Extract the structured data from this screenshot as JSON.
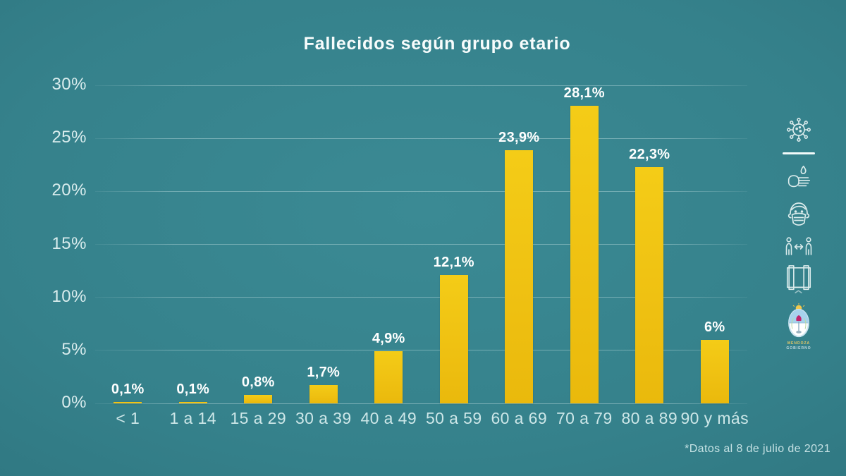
{
  "title": "Fallecidos según grupo etario",
  "footnote": "*Datos al 8 de julio de 2021",
  "colors": {
    "background_center": "#3B8A94",
    "background_edge": "#2B6E78",
    "bar": "#EFC112",
    "title_text": "#F7FCFC",
    "axis_text": "#D9ECED",
    "value_text": "#FFFFFF",
    "grid": "rgba(235,250,250,0.34)"
  },
  "chart_data": {
    "type": "bar",
    "title": "Fallecidos según grupo etario",
    "categories": [
      "< 1",
      "1 a 14",
      "15 a 29",
      "30 a 39",
      "40 a 49",
      "50 a 59",
      "60 a 69",
      "70 a 79",
      "80 a 89",
      "90 y más"
    ],
    "values": [
      0.1,
      0.1,
      0.8,
      1.7,
      4.9,
      12.1,
      23.9,
      28.1,
      22.3,
      6
    ],
    "value_labels": [
      "0,1%",
      "0,1%",
      "0,8%",
      "1,7%",
      "4,9%",
      "12,1%",
      "23,9%",
      "28,1%",
      "22,3%",
      "6%"
    ],
    "xlabel": "",
    "ylabel": "",
    "ylim": [
      0,
      30
    ],
    "yticks": [
      30,
      25,
      20,
      15,
      10,
      5,
      0
    ],
    "ytick_labels": [
      "30%",
      "25%",
      "20%",
      "15%",
      "10%",
      "5%",
      "0%"
    ],
    "grid": "horizontal",
    "legend": "none",
    "bar_color": "#EFC112"
  },
  "sidebar": {
    "icons": [
      {
        "name": "virus-icon"
      },
      {
        "name": "hand-washing-icon"
      },
      {
        "name": "face-mask-icon"
      },
      {
        "name": "social-distance-icon"
      },
      {
        "name": "open-window-icon"
      }
    ],
    "logo": {
      "name": "mendoza-gobierno-logo",
      "line1": "MENDOZA",
      "line2": "GOBIERNO"
    }
  }
}
